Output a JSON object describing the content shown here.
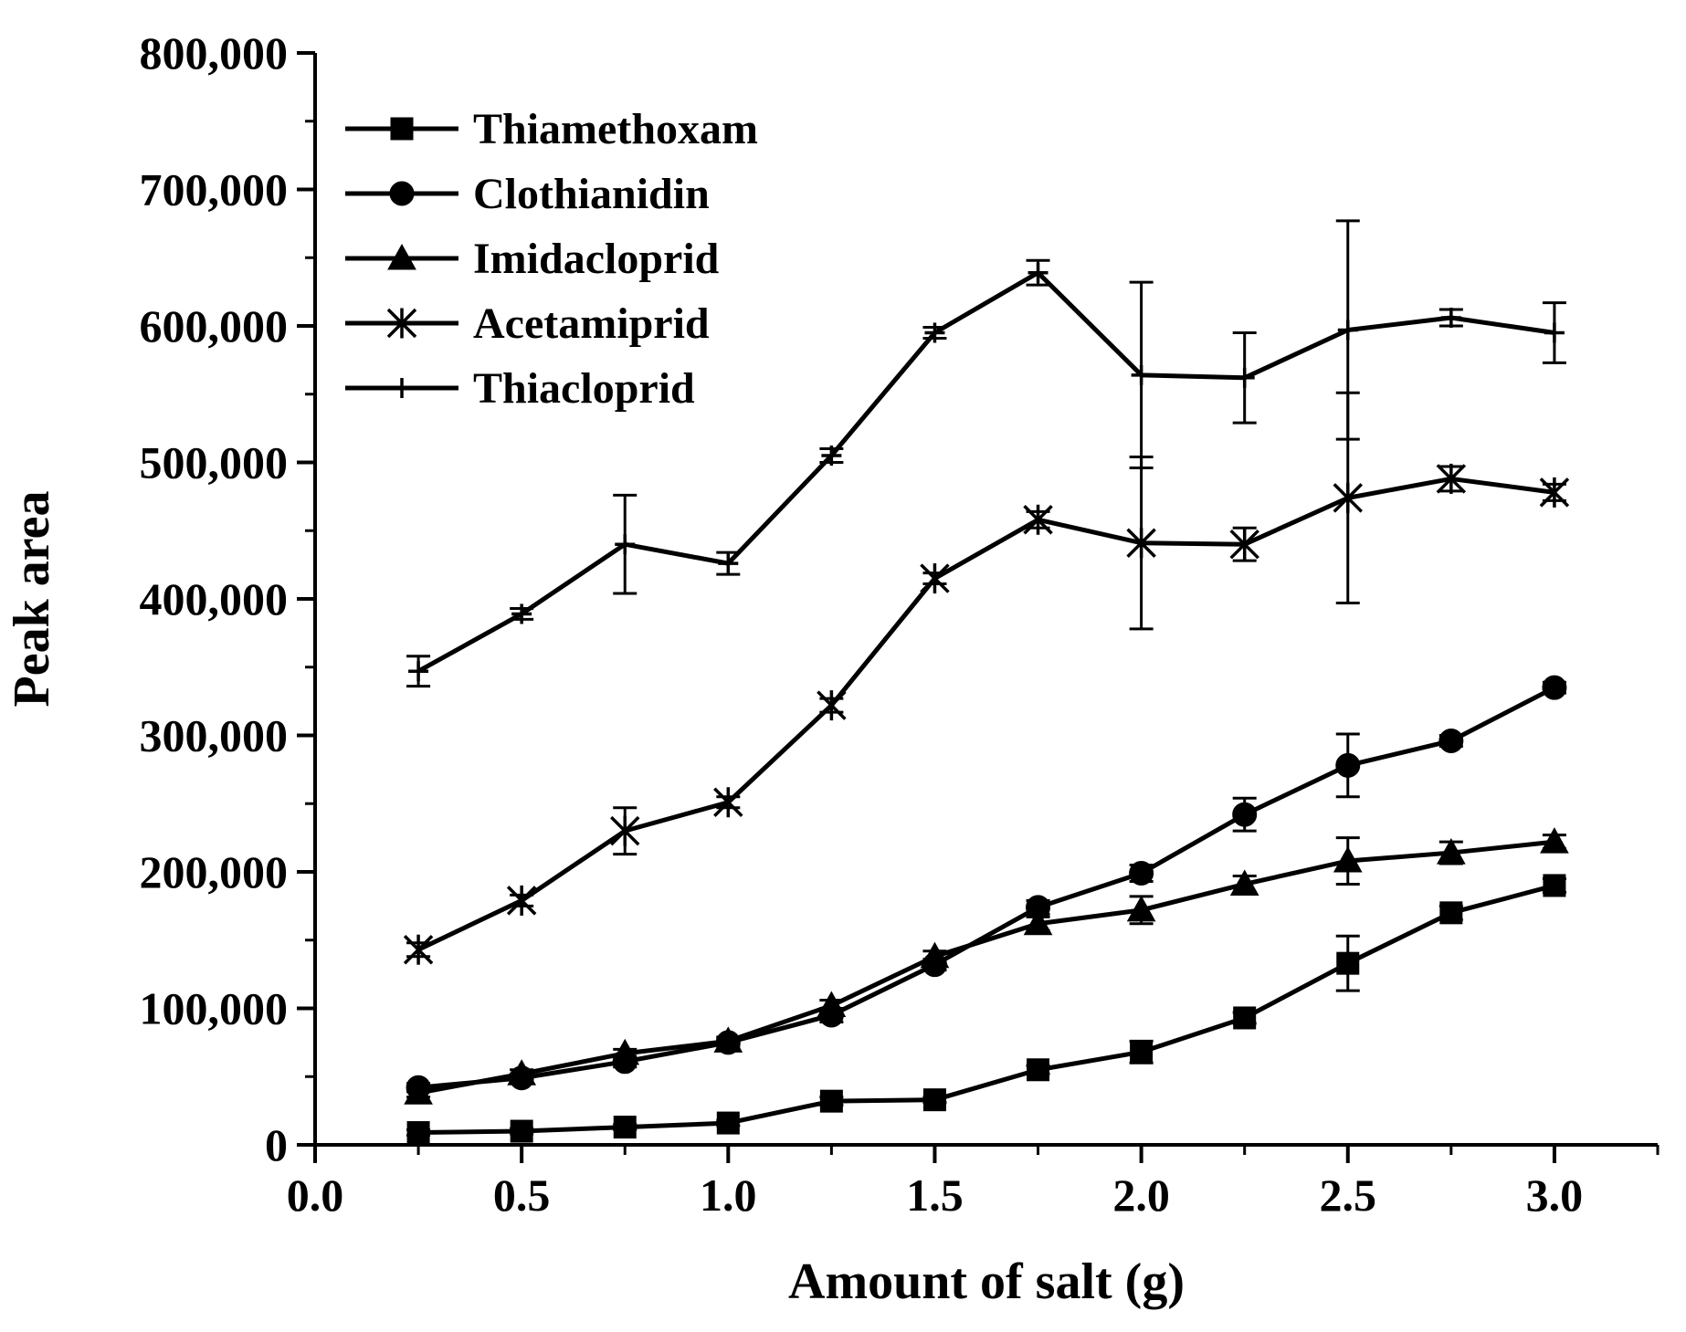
{
  "chart_data": {
    "type": "line",
    "title": "",
    "xlabel": "Amount of salt (g)",
    "ylabel": "Peak area",
    "xlim": [
      0.0,
      3.25
    ],
    "ylim": [
      0,
      800000
    ],
    "x_ticks": [
      0.0,
      0.5,
      1.0,
      1.5,
      2.0,
      2.5,
      3.0
    ],
    "x_tick_labels": [
      "0.0",
      "0.5",
      "1.0",
      "1.5",
      "2.0",
      "2.5",
      "3.0"
    ],
    "y_ticks": [
      0,
      100000,
      200000,
      300000,
      400000,
      500000,
      600000,
      700000,
      800000
    ],
    "y_tick_labels": [
      "0",
      "100,000",
      "200,000",
      "300,000",
      "400,000",
      "500,000",
      "600,000",
      "700,000",
      "800,000"
    ],
    "grid": false,
    "legend_position": "top-left",
    "x": [
      0.25,
      0.5,
      0.75,
      1.0,
      1.25,
      1.5,
      1.75,
      2.0,
      2.25,
      2.5,
      2.75,
      3.0
    ],
    "series": [
      {
        "name": "Thiamethoxam",
        "marker": "square",
        "values": [
          9000,
          10000,
          13000,
          16000,
          32000,
          33000,
          55000,
          68000,
          93000,
          133000,
          170000,
          190000
        ],
        "errors": [
          2000,
          2000,
          2000,
          2000,
          3000,
          2000,
          3000,
          8000,
          4000,
          20000,
          5000,
          5000
        ]
      },
      {
        "name": "Clothianidin",
        "marker": "circle",
        "values": [
          42000,
          49000,
          61000,
          75000,
          95000,
          132000,
          174000,
          199000,
          242000,
          278000,
          296000,
          335000
        ],
        "errors": [
          3000,
          3000,
          4000,
          3000,
          5000,
          4000,
          5000,
          6000,
          12000,
          23000,
          4000,
          4000
        ]
      },
      {
        "name": "Imidacloprid",
        "marker": "triangle",
        "values": [
          38000,
          52000,
          67000,
          76000,
          102000,
          138000,
          162000,
          172000,
          191000,
          208000,
          214000,
          222000
        ],
        "errors": [
          3000,
          3000,
          3000,
          3000,
          4000,
          4000,
          5000,
          10000,
          6000,
          17000,
          8000,
          5000
        ]
      },
      {
        "name": "Acetamiprid",
        "marker": "asterisk",
        "values": [
          143000,
          179000,
          230000,
          251000,
          322000,
          415000,
          458000,
          441000,
          440000,
          474000,
          488000,
          478000
        ],
        "errors": [
          5000,
          4000,
          17000,
          4000,
          5000,
          4000,
          6000,
          63000,
          12000,
          77000,
          9000,
          6000
        ]
      },
      {
        "name": "Thiacloprid",
        "marker": "plus",
        "values": [
          347000,
          389000,
          440000,
          426000,
          505000,
          595000,
          639000,
          564000,
          562000,
          597000,
          606000,
          595000
        ],
        "errors": [
          11000,
          4000,
          36000,
          8000,
          5000,
          4000,
          9000,
          68000,
          33000,
          80000,
          6000,
          22000
        ]
      }
    ]
  }
}
